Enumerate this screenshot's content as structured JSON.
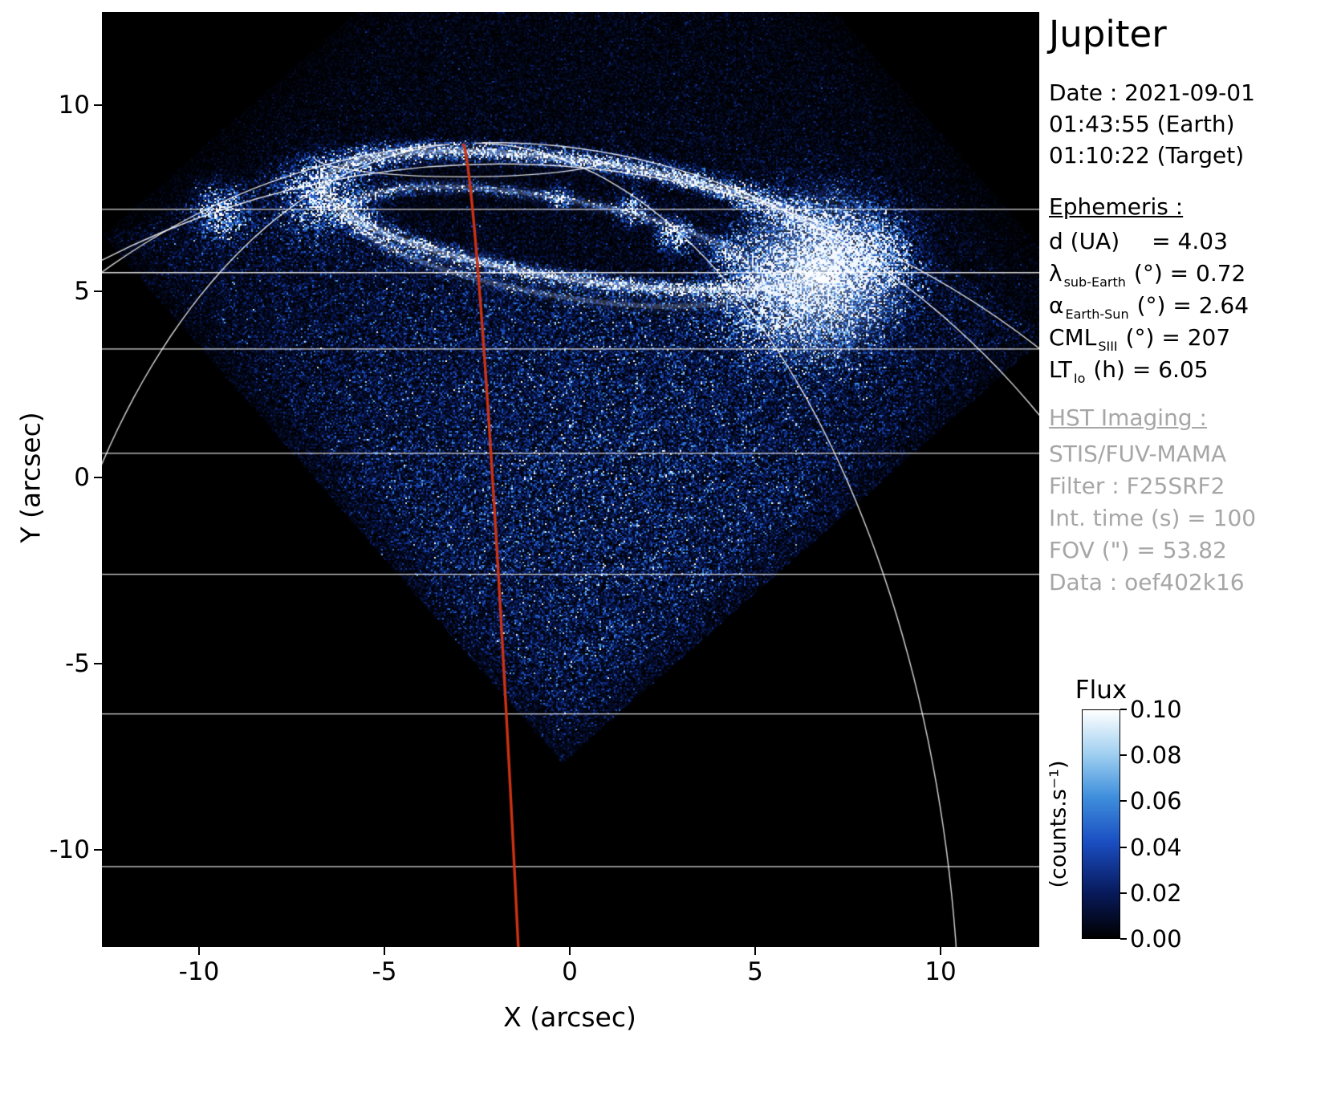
{
  "title": "Jupiter",
  "observation": {
    "date": "Date : 2021-09-01",
    "time_earth": "01:43:55 (Earth)",
    "time_target": "01:10:22 (Target)"
  },
  "ephemeris": {
    "heading": "Ephemeris :",
    "rows": [
      {
        "name": "d (UA)",
        "sub": "",
        "rest": " = 4.03"
      },
      {
        "name": "λ",
        "sub": "sub-Earth",
        "rest": "(°) = 0.72"
      },
      {
        "name": "α",
        "sub": "Earth-Sun",
        "rest": "(°) = 2.64"
      },
      {
        "name": "CML",
        "sub": "SIII",
        "rest": "(°) = 207"
      },
      {
        "name": "LT",
        "sub": "Io",
        "rest": "(h) = 6.05"
      }
    ]
  },
  "hst": {
    "heading": "HST Imaging :",
    "lines": [
      "STIS/FUV-MAMA",
      "Filter : F25SRF2",
      "Int. time (s) = 100",
      "FOV (\") = 53.82",
      "Data : oef402k16"
    ]
  },
  "chart_data": {
    "type": "heatmap",
    "title": "Jupiter",
    "xlabel": "X (arcsec)",
    "ylabel": "Y (arcsec)",
    "xlim": [
      -12.6,
      12.7
    ],
    "ylim": [
      -12.6,
      12.5
    ],
    "x_ticks": [
      -10,
      -5,
      0,
      5,
      10
    ],
    "y_ticks": [
      10,
      5,
      0,
      -5,
      -10
    ],
    "grid": false,
    "colorbar": {
      "title": "Flux",
      "unit": "(counts.s⁻¹)",
      "min": 0.0,
      "max": 0.1,
      "ticks": [
        "0.10",
        "0.08",
        "0.06",
        "0.04",
        "0.02",
        "0.00"
      ],
      "stops": [
        {
          "t": 0,
          "c": "#000000"
        },
        {
          "t": 0.2,
          "c": "#081a5c"
        },
        {
          "t": 0.42,
          "c": "#1a4ec2"
        },
        {
          "t": 0.62,
          "c": "#3f8fdc"
        },
        {
          "t": 0.8,
          "c": "#9ccdf0"
        },
        {
          "t": 1,
          "c": "#ffffff"
        }
      ]
    },
    "overlay": {
      "latitude_lines_y_arcsec": [
        7.2,
        5.5,
        3.45,
        0.65,
        -2.6,
        -6.35,
        -10.45
      ],
      "meridian_offsets_deg": [
        -60,
        -35,
        32,
        60
      ],
      "central_meridian_color": "#cc3213",
      "axis_tilt_deg": 2.7,
      "planet_center_arcsec": [
        -1.8,
        -14.2
      ],
      "planet_radius_arcsec": 23.2,
      "fov_diamond_arcsec": [
        [
          -0.2,
          -7.65
        ],
        [
          -12.6,
          6.5
        ],
        [
          1.55,
          18.9
        ],
        [
          13.95,
          4.75
        ]
      ],
      "aurora_main_oval": {
        "cx": 0.3,
        "cy": 6.9,
        "a": 7.0,
        "b": 1.6,
        "rot_deg": -8
      },
      "aurora_inner_oval": {
        "cx": -0.4,
        "cy": 6.2,
        "a": 5.6,
        "b": 1.3,
        "rot_deg": -10
      },
      "bright_blobs": [
        {
          "x": 6.6,
          "y": 5.4,
          "s": 1.1,
          "a": 1.9
        },
        {
          "x": 8.0,
          "y": 5.9,
          "s": 0.7,
          "a": 1.3
        },
        {
          "x": 5.3,
          "y": 4.9,
          "s": 0.8,
          "a": 0.8
        },
        {
          "x": -6.9,
          "y": 7.5,
          "s": 0.55,
          "a": 0.9
        },
        {
          "x": -9.4,
          "y": 7.1,
          "s": 0.4,
          "a": 1.2
        },
        {
          "x": 1.7,
          "y": 7.2,
          "s": 0.22,
          "a": 1.5
        },
        {
          "x": 2.8,
          "y": 6.5,
          "s": 0.25,
          "a": 1.7
        },
        {
          "x": 4.3,
          "y": 6.0,
          "s": 0.22,
          "a": 1.4
        },
        {
          "x": -0.3,
          "y": 7.5,
          "s": 0.18,
          "a": 1.1
        }
      ]
    }
  }
}
